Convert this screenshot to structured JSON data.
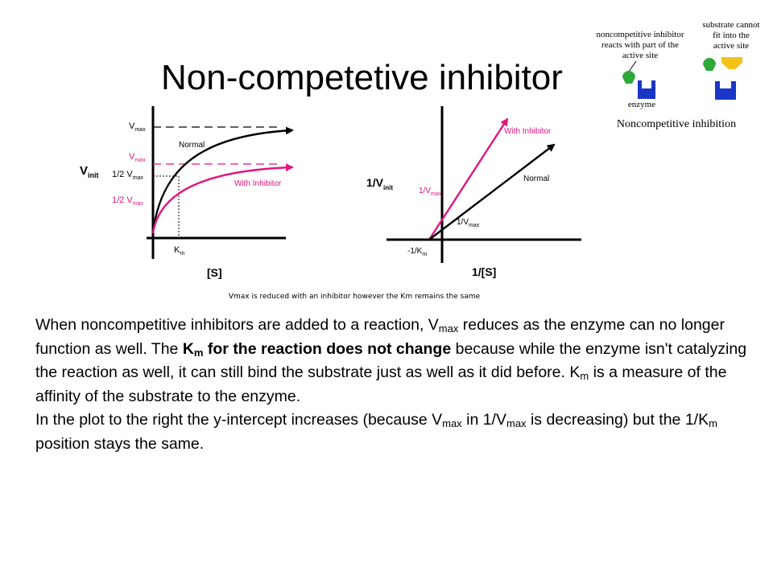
{
  "slide": {
    "title": "Non-competetive inhibitor"
  },
  "inset": {
    "label_left": [
      "noncompetitive inhibitor",
      "reacts with part of the",
      "active site"
    ],
    "label_right": [
      "substrate cannot",
      "fit into the",
      "active site"
    ],
    "enzyme_label": "enzyme",
    "caption": "Noncompetitive inhibition",
    "colors": {
      "enzyme": "#1a36c8",
      "inhibitor": "#2fa83a",
      "substrate": "#f2c218"
    }
  },
  "mm_plot": {
    "y_axis_label_main": "V",
    "y_axis_label_sub": "init",
    "x_axis_label": "[S]",
    "km_main": "K",
    "km_sub": "m",
    "vmax_normal": {
      "main": "V",
      "sub": "max"
    },
    "half_vmax_normal": {
      "main": "1/2 V",
      "sub": "max"
    },
    "vmax_inhib": {
      "main": "V",
      "sub": "max"
    },
    "half_vmax_inhib": {
      "main": "1/2 V",
      "sub": "max"
    },
    "normal_label": "Normal",
    "inhibitor_label": "With Inhibitor",
    "colors": {
      "normal": "#000000",
      "inhibitor": "#e0157f"
    }
  },
  "lb_plot": {
    "y_axis_label_main": "1/V",
    "y_axis_label_sub": "init",
    "x_axis_label": "1/[S]",
    "intercept_inhib": {
      "main": "1/V",
      "sub": "max"
    },
    "intercept_normal": {
      "main": "1/V",
      "sub": "max"
    },
    "x_intercept": {
      "main": "-1/K",
      "sub": "m"
    },
    "normal_label": "Normal",
    "inhibitor_label": "With Inhibitor"
  },
  "figure_caption": "Vmax is reduced with an inhibitor however the Km remains the same",
  "paragraph1": {
    "s1": "When noncompetitive inhibitors are added to a reaction, V",
    "s1_sub": "max",
    "s2": " reduces as the enzyme can no longer function as well. The ",
    "bold_k": "K",
    "bold_sub": "m",
    "bold_rest": " for the reaction does not change",
    "s3": " because while the enzyme isn't catalyzing the reaction as well, it can still bind the substrate just as well as it did before. K",
    "s3_sub": "m",
    "s4": " is a measure of the affinity of the substrate to the enzyme."
  },
  "paragraph2": {
    "s1": "In the plot to the right the y-intercept increases (because V",
    "s1_sub": "max",
    "s2": " in 1/V",
    "s2_sub": "max",
    "s3": " is decreasing) but the 1/K",
    "s3_sub": "m",
    "s4": " position stays the same."
  }
}
